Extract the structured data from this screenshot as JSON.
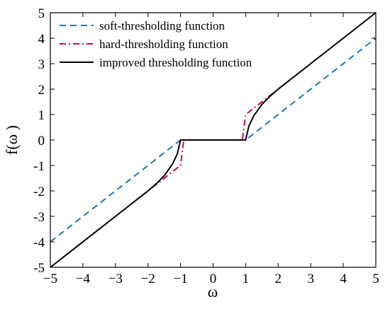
{
  "chart_data": {
    "type": "line",
    "title": "",
    "xlabel": "ω",
    "ylabel": "f(ω )",
    "xlim": [
      -5,
      5
    ],
    "ylim": [
      -5,
      5
    ],
    "xticks": [
      -5,
      -4,
      -3,
      -2,
      -1,
      0,
      1,
      2,
      3,
      4,
      5
    ],
    "xtick_labels": [
      "−5",
      "−4",
      "−3",
      "−2",
      "−1",
      "0",
      "1",
      "2",
      "3",
      "4",
      "5"
    ],
    "yticks": [
      -5,
      -4,
      -3,
      -2,
      -1,
      0,
      1,
      2,
      3,
      4,
      5
    ],
    "ytick_labels": [
      "-5",
      "-4",
      "-3",
      "-2",
      "-1",
      "0",
      "1",
      "2",
      "3",
      "4",
      "5"
    ],
    "grid": false,
    "legend_position": "top-left",
    "series": [
      {
        "name": "soft-thresholding function",
        "color": "#1f77b4",
        "style": "dashed",
        "x": [
          -5,
          -1,
          1,
          5
        ],
        "y": [
          -4,
          0,
          0,
          4
        ]
      },
      {
        "name": "hard-thresholding function",
        "color": "#c0143c",
        "style": "dashdot",
        "x": [
          -2.2,
          -1,
          -0.9,
          0.9,
          1,
          2.2
        ],
        "y": [
          -2.2,
          -1,
          0,
          0,
          1,
          2.2
        ]
      },
      {
        "name": "improved thresholding function",
        "color": "#000000",
        "style": "solid",
        "x": [
          -5,
          -3,
          -2.2,
          -2,
          -1.75,
          -1.5,
          -1.25,
          -1.1,
          -1,
          1,
          1.1,
          1.25,
          1.5,
          1.75,
          2,
          2.2,
          3,
          5
        ],
        "y": [
          -5,
          -3,
          -2.2,
          -2.0,
          -1.72,
          -1.4,
          -0.95,
          -0.55,
          0,
          0,
          0.55,
          0.95,
          1.4,
          1.72,
          2.0,
          2.2,
          3,
          5
        ]
      }
    ]
  }
}
